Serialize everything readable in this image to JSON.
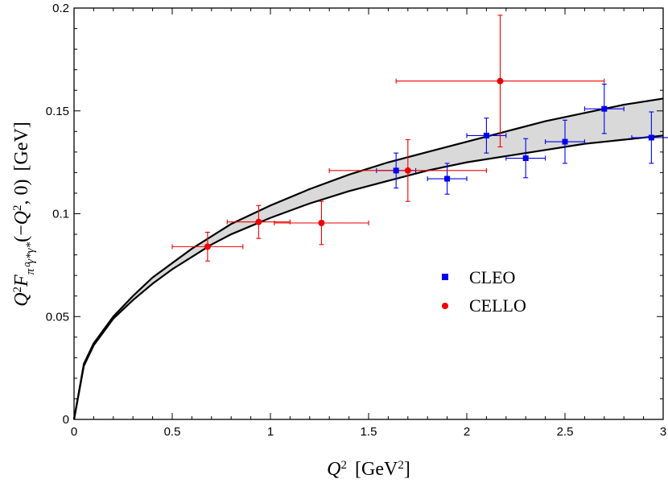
{
  "chart_data": {
    "type": "scatter",
    "xlabel": "Q² [GeV²]",
    "ylabel": "Q²F_{π⁰γ*γ*}(−Q², 0) [GeV]",
    "xlim": [
      0,
      3
    ],
    "ylim": [
      0,
      0.2
    ],
    "x_ticks": [
      "0",
      "0.5",
      "1",
      "1.5",
      "2",
      "2.5",
      "3"
    ],
    "y_ticks": [
      "0",
      "0.05",
      "0.1",
      "0.15",
      "0.2"
    ],
    "grid": false,
    "legend_position": "right-center",
    "band": {
      "color": "#d9d9d9",
      "upper_curve": [
        [
          0,
          0
        ],
        [
          0.05,
          0.027
        ],
        [
          0.1,
          0.037
        ],
        [
          0.2,
          0.05
        ],
        [
          0.3,
          0.06
        ],
        [
          0.4,
          0.069
        ],
        [
          0.5,
          0.076
        ],
        [
          0.6,
          0.083
        ],
        [
          0.7,
          0.089
        ],
        [
          0.8,
          0.095
        ],
        [
          1.0,
          0.104
        ],
        [
          1.2,
          0.112
        ],
        [
          1.4,
          0.119
        ],
        [
          1.6,
          0.125
        ],
        [
          1.8,
          0.13
        ],
        [
          2.0,
          0.135
        ],
        [
          2.2,
          0.14
        ],
        [
          2.4,
          0.145
        ],
        [
          2.6,
          0.149
        ],
        [
          2.8,
          0.153
        ],
        [
          3.0,
          0.156
        ]
      ],
      "lower_curve": [
        [
          0,
          0
        ],
        [
          0.05,
          0.026
        ],
        [
          0.1,
          0.036
        ],
        [
          0.2,
          0.049
        ],
        [
          0.3,
          0.058
        ],
        [
          0.4,
          0.066
        ],
        [
          0.5,
          0.073
        ],
        [
          0.6,
          0.079
        ],
        [
          0.7,
          0.085
        ],
        [
          0.8,
          0.09
        ],
        [
          1.0,
          0.098
        ],
        [
          1.2,
          0.105
        ],
        [
          1.4,
          0.111
        ],
        [
          1.6,
          0.116
        ],
        [
          1.8,
          0.121
        ],
        [
          2.0,
          0.125
        ],
        [
          2.2,
          0.128
        ],
        [
          2.4,
          0.131
        ],
        [
          2.6,
          0.134
        ],
        [
          2.8,
          0.136
        ],
        [
          3.0,
          0.138
        ]
      ]
    },
    "series": [
      {
        "name": "CLEO",
        "color": "#0000ee",
        "marker": "square",
        "points": [
          {
            "x": 1.64,
            "y": 0.121,
            "xerr": 0.1,
            "yerr": 0.0085
          },
          {
            "x": 1.9,
            "y": 0.117,
            "xerr": 0.1,
            "yerr": 0.0075
          },
          {
            "x": 2.1,
            "y": 0.138,
            "xerr": 0.1,
            "yerr": 0.0085
          },
          {
            "x": 2.3,
            "y": 0.127,
            "xerr": 0.1,
            "yerr": 0.0095
          },
          {
            "x": 2.5,
            "y": 0.135,
            "xerr": 0.1,
            "yerr": 0.0105
          },
          {
            "x": 2.7,
            "y": 0.151,
            "xerr": 0.1,
            "yerr": 0.012
          },
          {
            "x": 2.94,
            "y": 0.137,
            "xerr": 0.1,
            "yerr": 0.0125
          }
        ]
      },
      {
        "name": "CELLO",
        "color": "#ee0000",
        "marker": "circle",
        "points": [
          {
            "x": 0.68,
            "y": 0.084,
            "xerr": 0.18,
            "yerr": 0.007
          },
          {
            "x": 0.94,
            "y": 0.096,
            "xerr": 0.16,
            "yerr": 0.008
          },
          {
            "x": 1.26,
            "y": 0.0955,
            "xerr": 0.24,
            "yerr": 0.0105
          },
          {
            "x": 1.7,
            "y": 0.121,
            "xerr": 0.4,
            "yerr": 0.015
          },
          {
            "x": 2.17,
            "y": 0.1645,
            "xerr": 0.53,
            "yerr": 0.032
          }
        ]
      }
    ]
  }
}
